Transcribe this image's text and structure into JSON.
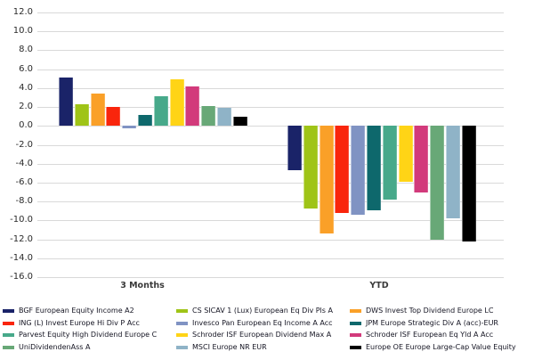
{
  "chart_data": {
    "type": "bar",
    "title": "",
    "groups": [
      "3 Months",
      "YTD"
    ],
    "series": [
      {
        "name": "BGF European Equity Income A2",
        "color": "#1a2368",
        "values": [
          5.1,
          -4.7
        ]
      },
      {
        "name": "CS SICAV 1 (Lux) European Eq Div Pls A",
        "color": "#9fc417",
        "values": [
          2.3,
          -8.7
        ]
      },
      {
        "name": "DWS Invest Top Dividend Europe LC",
        "color": "#faa028",
        "values": [
          3.4,
          -11.4
        ]
      },
      {
        "name": "ING (L) Invest Europe Hi Div P Acc",
        "color": "#f9250c",
        "values": [
          2.0,
          -9.2
        ]
      },
      {
        "name": "Invesco Pan European Eq Income A Acc",
        "color": "#8093c3",
        "values": [
          -0.3,
          -9.4
        ]
      },
      {
        "name": "JPM Europe Strategic Div A (acc)-EUR",
        "color": "#0e686c",
        "values": [
          1.2,
          -8.9
        ]
      },
      {
        "name": "Parvest Equity High Dividend Europe C",
        "color": "#47a98a",
        "values": [
          3.1,
          -7.8
        ]
      },
      {
        "name": "Schroder ISF European Dividend Max A",
        "color": "#ffd416",
        "values": [
          4.9,
          -5.9
        ]
      },
      {
        "name": "Schroder ISF European Eq Yld A Acc",
        "color": "#d23a7b",
        "values": [
          4.2,
          -7.0
        ]
      },
      {
        "name": "UniDividendenAss A",
        "color": "#68a877",
        "values": [
          2.1,
          -12.0
        ]
      },
      {
        "name": "MSCI Europe NR EUR",
        "color": "#8fb3c7",
        "values": [
          1.9,
          -9.8
        ]
      },
      {
        "name": "Europe OE Europe Large-Cap Value Equity",
        "color": "#000000",
        "values": [
          1.0,
          -12.2
        ]
      }
    ],
    "ylim": [
      -16,
      12
    ],
    "ytick_step": 2,
    "ytick_labels": [
      "12.0",
      "10.0",
      "8.0",
      "6.0",
      "4.0",
      "2.0",
      "0.0",
      "-2.0",
      "-4.0",
      "-6.0",
      "-8.0",
      "-10.0",
      "-12.0",
      "-14.0",
      "-16.0"
    ],
    "grid": true,
    "legend_position": "bottom",
    "legend_columns": 3,
    "colors": {
      "grid": "#d9d9d9",
      "axis_text": "#2b2b2b",
      "group_label_text": "#3a3a3a",
      "legend_text": "#141422",
      "background": "#ffffff"
    }
  }
}
